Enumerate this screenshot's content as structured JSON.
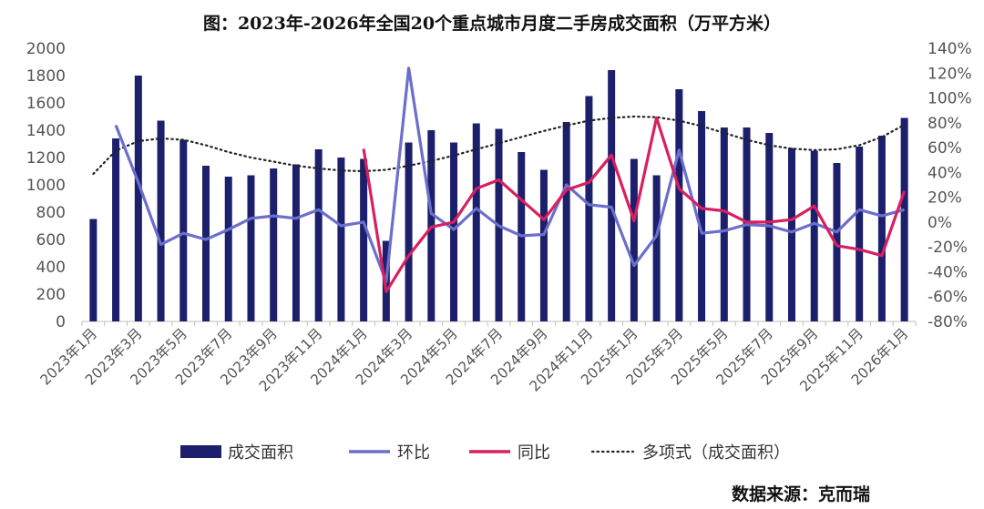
{
  "chart_data": {
    "type": "bar",
    "title": "图：2023年-2026年全国20个重点城市月度二手房成交面积（万平方米）",
    "source": "数据来源：克而瑞",
    "categories": [
      "2023年1月",
      "2023年2月",
      "2023年3月",
      "2023年4月",
      "2023年5月",
      "2023年6月",
      "2023年7月",
      "2023年8月",
      "2023年9月",
      "2023年10月",
      "2023年11月",
      "2023年12月",
      "2024年1月",
      "2024年2月",
      "2024年3月",
      "2024年4月",
      "2024年5月",
      "2024年6月",
      "2024年7月",
      "2024年8月",
      "2024年9月",
      "2024年10月",
      "2024年11月",
      "2024年12月",
      "2025年1月",
      "2025年2月",
      "2025年3月",
      "2025年4月",
      "2025年5月",
      "2025年6月",
      "2025年7月",
      "2025年8月",
      "2025年9月",
      "2025年10月",
      "2025年11月",
      "2025年12月",
      "2026年1月"
    ],
    "x_tick_labels": [
      "2023年1月",
      "2023年3月",
      "2023年5月",
      "2023年7月",
      "2023年9月",
      "2023年11月",
      "2024年1月",
      "2024年3月",
      "2024年5月",
      "2024年7月",
      "2024年9月",
      "2024年11月",
      "2025年1月",
      "2025年3月",
      "2025年5月",
      "2025年7月",
      "2025年9月",
      "2025年11月",
      "2026年1月"
    ],
    "left_axis": {
      "ylim": [
        0,
        2000
      ],
      "ticks": [
        "0",
        "200",
        "400",
        "600",
        "800",
        "1000",
        "1200",
        "1400",
        "1600",
        "1800",
        "2000"
      ]
    },
    "right_axis": {
      "ylim": [
        -80,
        140
      ],
      "ticks": [
        "-80%",
        "-60%",
        "-40%",
        "-20%",
        "0%",
        "20%",
        "40%",
        "60%",
        "80%",
        "100%",
        "120%",
        "140%"
      ]
    },
    "series": [
      {
        "name": "成交面积",
        "type": "bar",
        "axis": "left",
        "color": "#1c1f6b",
        "values": [
          750,
          1340,
          1800,
          1470,
          1330,
          1140,
          1060,
          1070,
          1120,
          1150,
          1260,
          1200,
          1190,
          590,
          1310,
          1400,
          1310,
          1450,
          1410,
          1240,
          1110,
          1460,
          1650,
          1840,
          1190,
          1070,
          1700,
          1540,
          1420,
          1420,
          1380,
          1270,
          1250,
          1160,
          1280,
          1360,
          1490
        ]
      },
      {
        "name": "环比",
        "type": "line",
        "axis": "right",
        "color": "#6b6fcc",
        "values": [
          null,
          78,
          32,
          -18,
          -9,
          -14,
          -6,
          3,
          5,
          3,
          10,
          -3,
          0,
          -48,
          124,
          7,
          -6,
          11,
          -3,
          -11,
          -10,
          30,
          14,
          12,
          -35,
          -11,
          58,
          -9,
          -7,
          -2,
          -3,
          -8,
          -1,
          -8,
          10,
          5,
          10
        ]
      },
      {
        "name": "同比",
        "type": "line",
        "axis": "right",
        "color": "#d81f5f",
        "values": [
          null,
          null,
          null,
          null,
          null,
          null,
          null,
          null,
          null,
          null,
          null,
          null,
          59,
          -56,
          -27,
          -4,
          0,
          27,
          34,
          18,
          2,
          26,
          32,
          54,
          1,
          84,
          27,
          11,
          9,
          0,
          0,
          2,
          13,
          -19,
          -22,
          -27,
          25
        ]
      },
      {
        "name": "多项式（成交面积）",
        "type": "trend",
        "axis": "left",
        "color": "#222222",
        "values": [
          1080,
          1250,
          1320,
          1340,
          1330,
          1290,
          1240,
          1200,
          1170,
          1140,
          1120,
          1105,
          1100,
          1110,
          1140,
          1175,
          1215,
          1260,
          1305,
          1350,
          1395,
          1435,
          1470,
          1490,
          1500,
          1495,
          1470,
          1430,
          1380,
          1330,
          1290,
          1265,
          1255,
          1260,
          1290,
          1350,
          1440
        ]
      }
    ]
  }
}
